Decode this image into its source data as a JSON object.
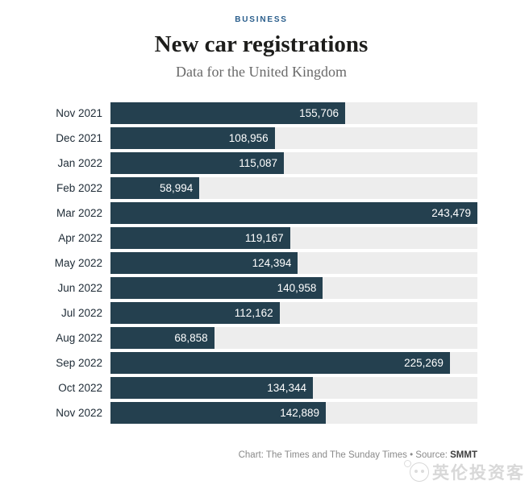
{
  "header": {
    "kicker": "BUSINESS",
    "title": "New car registrations",
    "subtitle": "Data for the United Kingdom"
  },
  "chart_data": {
    "type": "bar",
    "orientation": "horizontal",
    "title": "New car registrations",
    "subtitle": "Data for the United Kingdom",
    "categories": [
      "Nov 2021",
      "Dec 2021",
      "Jan 2022",
      "Feb 2022",
      "Mar 2022",
      "Apr 2022",
      "May 2022",
      "Jun 2022",
      "Jul 2022",
      "Aug 2022",
      "Sep 2022",
      "Oct 2022",
      "Nov 2022"
    ],
    "values": [
      155706,
      108956,
      115087,
      58994,
      243479,
      119167,
      124394,
      140958,
      112162,
      68858,
      225269,
      134344,
      142889
    ],
    "value_labels": [
      "155,706",
      "108,956",
      "115,087",
      "58,994",
      "243,479",
      "119,167",
      "124,394",
      "140,958",
      "112,162",
      "68,858",
      "225,269",
      "134,344",
      "142,889"
    ],
    "xlim": [
      0,
      243479
    ],
    "grid": "off",
    "legend": "none",
    "value_label_position": "inside-end",
    "bar_color": "#24404f",
    "track_color": "#ededed",
    "kicker_color": "#2a5e8c"
  },
  "footer": {
    "chart_prefix": "Chart:",
    "chart_credit": "The Times and The Sunday Times",
    "separator": "•",
    "source_prefix": "Source:",
    "source": "SMMT"
  },
  "watermark": {
    "text": "英伦投资客",
    "icon": "panda-logo-icon"
  }
}
